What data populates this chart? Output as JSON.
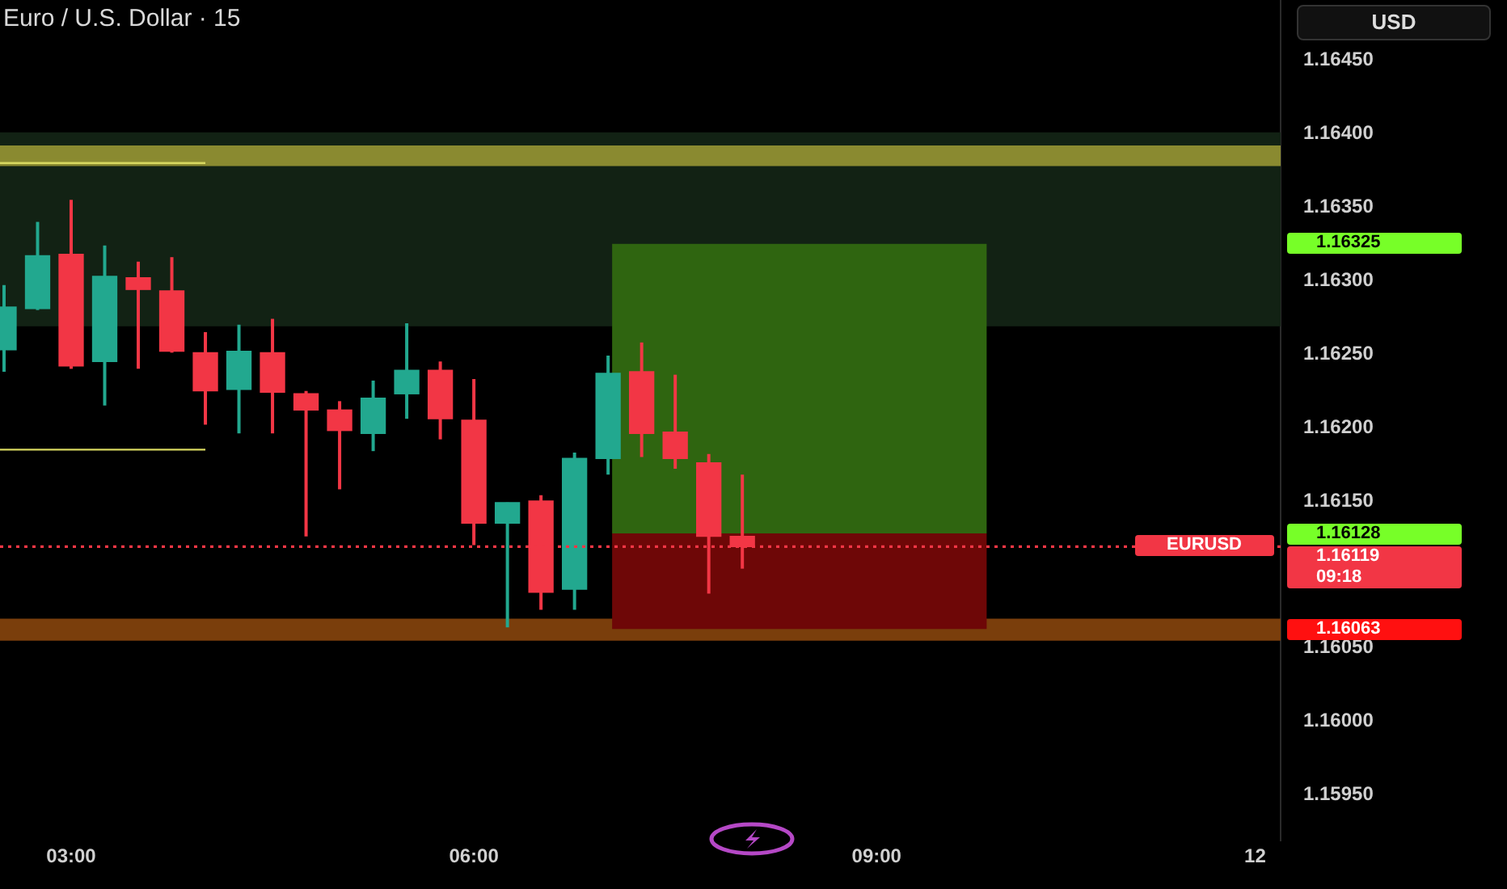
{
  "chart_data": {
    "type": "candlestick",
    "title": "Euro / U.S. Dollar · 15",
    "ylabel": "USD",
    "x": [
      2.5,
      2.75,
      3,
      3.25,
      3.5,
      3.75,
      4,
      4.25,
      4.5,
      4.75,
      5,
      5.25,
      5.5,
      5.75,
      6,
      6.25,
      6.5,
      6.75,
      7,
      7.25,
      7.5,
      7.75,
      8
    ],
    "ohlc": [
      [
        1.16253,
        1.16297,
        1.16238,
        1.16282
      ],
      [
        1.16281,
        1.1634,
        1.1628,
        1.16317
      ],
      [
        1.16318,
        1.16355,
        1.1624,
        1.16242
      ],
      [
        1.16245,
        1.16324,
        1.16215,
        1.16303
      ],
      [
        1.16302,
        1.16313,
        1.1624,
        1.16294
      ],
      [
        1.16293,
        1.16316,
        1.16251,
        1.16252
      ],
      [
        1.16251,
        1.16265,
        1.16202,
        1.16225
      ],
      [
        1.16226,
        1.1627,
        1.16196,
        1.16252
      ],
      [
        1.16251,
        1.16274,
        1.16196,
        1.16224
      ],
      [
        1.16223,
        1.16225,
        1.16126,
        1.16212
      ],
      [
        1.16212,
        1.16218,
        1.16158,
        1.16198
      ],
      [
        1.16196,
        1.16232,
        1.16184,
        1.1622
      ],
      [
        1.16223,
        1.16271,
        1.16206,
        1.16239
      ],
      [
        1.16239,
        1.16245,
        1.16192,
        1.16206
      ],
      [
        1.16205,
        1.16233,
        1.1612,
        1.16135
      ],
      [
        1.16135,
        1.16149,
        1.16064,
        1.16149
      ],
      [
        1.1615,
        1.16154,
        1.16076,
        1.16088
      ],
      [
        1.1609,
        1.16183,
        1.16076,
        1.16179
      ],
      [
        1.16179,
        1.16249,
        1.16168,
        1.16237
      ],
      [
        1.16238,
        1.16258,
        1.1618,
        1.16196
      ],
      [
        1.16197,
        1.16236,
        1.16172,
        1.16179
      ],
      [
        1.16176,
        1.16182,
        1.16087,
        1.16126
      ],
      [
        1.16126,
        1.16168,
        1.16104,
        1.16119
      ]
    ],
    "colors": [
      "#22a88f",
      "#22a88f",
      "#f23645",
      "#22a88f",
      "#f23645",
      "#f23645",
      "#f23645",
      "#22a88f",
      "#f23645",
      "#f23645",
      "#f23645",
      "#22a88f",
      "#22a88f",
      "#f23645",
      "#f23645",
      "#22a88f",
      "#f23645",
      "#22a88f",
      "#22a88f",
      "#f23645",
      "#f23645",
      "#f23645",
      "#f23645"
    ],
    "series": [
      {
        "type": "line",
        "x": [
          7.03,
          9.82
        ],
        "values": [
          null,
          null
        ],
        "lower": [
          1.16128,
          1.16128
        ],
        "upper": [
          1.16325,
          1.16325
        ],
        "color": "#2f6510"
      },
      {
        "type": "line",
        "x": [
          7.03,
          9.82
        ],
        "values": [
          null,
          null
        ],
        "lower": [
          1.16063,
          1.16063
        ],
        "upper": [
          1.16128,
          1.16128
        ],
        "color": "#6e0707"
      },
      {
        "type": "line",
        "x": [
          2.47,
          4.0
        ],
        "values": [
          1.1638,
          1.1638
        ],
        "color": "#d8d860"
      },
      {
        "type": "line",
        "x": [
          2.47,
          4.0
        ],
        "values": [
          1.16185,
          1.16185
        ],
        "color": "#d8d860"
      }
    ],
    "xlim": [
      2.47,
      12.01
    ],
    "xticks": [
      {
        "value": 3,
        "label": "03:00"
      },
      {
        "value": 6,
        "label": "06:00"
      },
      {
        "value": 9,
        "label": "09:00"
      },
      {
        "value": 11.82,
        "label": "12"
      }
    ],
    "ylim": [
      1.15919,
      1.16491
    ],
    "yticks": [
      {
        "value": 1.1595,
        "label": "1.15950"
      },
      {
        "value": 1.16,
        "label": "1.16000"
      },
      {
        "value": 1.1605,
        "label": "1.16050"
      },
      {
        "value": 1.1615,
        "label": "1.16150"
      },
      {
        "value": 1.162,
        "label": "1.16200"
      },
      {
        "value": 1.1625,
        "label": "1.16250"
      },
      {
        "value": 1.163,
        "label": "1.16300"
      },
      {
        "value": 1.1635,
        "label": "1.16350"
      },
      {
        "value": 1.164,
        "label": "1.16400"
      },
      {
        "value": 1.1645,
        "label": "1.16450"
      }
    ],
    "bands": [
      {
        "axis": "y",
        "from": 1.16269,
        "to": 1.16401,
        "color": "#122214"
      },
      {
        "axis": "y",
        "from": 1.16378,
        "to": 1.16392,
        "color": "#8a8a30"
      },
      {
        "axis": "y",
        "from": 1.16055,
        "to": 1.1607,
        "color": "#7a3e0c"
      }
    ],
    "ref_lines": [
      {
        "axis": "y",
        "value": 1.16119,
        "color": "#f23645",
        "line_style": "dotted",
        "label": "EURUSD"
      }
    ],
    "annotations": [
      "1.16325",
      "1.16128",
      "1.16119",
      "09:18",
      "1.16063"
    ]
  }
}
